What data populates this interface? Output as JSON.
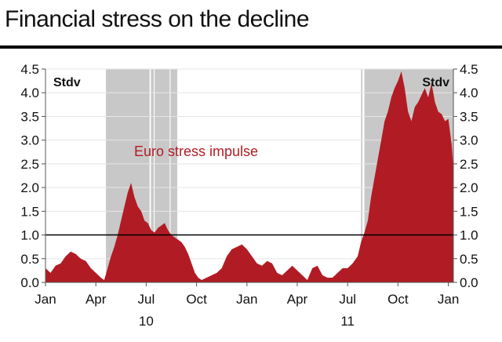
{
  "title": "Financial stress on the decline",
  "chart_data": {
    "type": "area",
    "title": "Financial stress on the decline",
    "ylabel_left": "Stdv",
    "ylabel_right": "Stdv",
    "ylim": [
      0,
      4.5
    ],
    "y_ticks": [
      "0.0",
      "0.5",
      "1.0",
      "1.5",
      "2.0",
      "2.5",
      "3.0",
      "3.5",
      "4.0",
      "4.5"
    ],
    "x_ticks": [
      "Jan",
      "Apr",
      "Jul",
      "Oct",
      "Jan",
      "Apr",
      "Jul",
      "Oct",
      "Jan"
    ],
    "x_tick_months": [
      0,
      3,
      6,
      9,
      12,
      15,
      18,
      21,
      24
    ],
    "year_labels": [
      {
        "label": "10",
        "month": 6
      },
      {
        "label": "11",
        "month": 18
      }
    ],
    "reference_line": 1.0,
    "annotation": "Euro stress impulse",
    "colors": {
      "area": "#b11c24",
      "shade": "#c8c8c8",
      "annotation": "#b11c24",
      "ref_line": "#000000"
    },
    "shaded_periods": [
      [
        3.6,
        6.2
      ],
      [
        6.28,
        6.45
      ],
      [
        6.5,
        7.4
      ],
      [
        7.45,
        7.85
      ],
      [
        18.8,
        18.88
      ],
      [
        19.0,
        24.3
      ]
    ],
    "series": [
      {
        "x": [
          0,
          0.3,
          0.6,
          0.9,
          1.2,
          1.5,
          1.8,
          2.1,
          2.4,
          2.7,
          3.0,
          3.3,
          3.5,
          3.7,
          3.9,
          4.1,
          4.3,
          4.5,
          4.7,
          4.9,
          5.1,
          5.3,
          5.5,
          5.7,
          5.9,
          6.1,
          6.3,
          6.5,
          6.7,
          6.9,
          7.1,
          7.3,
          7.5,
          7.7,
          7.9,
          8.1,
          8.3,
          8.5,
          8.7,
          8.9,
          9.1,
          9.3,
          9.6,
          9.9,
          10.2,
          10.5,
          10.8,
          11.1,
          11.4,
          11.7,
          12.0,
          12.3,
          12.6,
          12.9,
          13.2,
          13.5,
          13.8,
          14.1,
          14.4,
          14.7,
          15.0,
          15.3,
          15.6,
          15.9,
          16.2,
          16.5,
          16.8,
          17.1,
          17.4,
          17.7,
          18.0,
          18.3,
          18.6,
          18.8,
          19.0,
          19.2,
          19.4,
          19.6,
          19.8,
          20.0,
          20.2,
          20.4,
          20.6,
          20.8,
          21.0,
          21.2,
          21.4,
          21.6,
          21.8,
          22.0,
          22.2,
          22.4,
          22.6,
          22.8,
          23.0,
          23.2,
          23.4,
          23.6,
          23.8,
          24.0,
          24.2,
          24.3
        ],
        "values": [
          0.3,
          0.2,
          0.35,
          0.4,
          0.55,
          0.65,
          0.6,
          0.5,
          0.45,
          0.3,
          0.2,
          0.1,
          0.05,
          0.3,
          0.55,
          0.75,
          1.0,
          1.3,
          1.6,
          1.9,
          2.1,
          1.8,
          1.6,
          1.5,
          1.3,
          1.25,
          1.1,
          1.05,
          1.15,
          1.2,
          1.25,
          1.1,
          1.0,
          0.95,
          0.9,
          0.85,
          0.75,
          0.6,
          0.4,
          0.2,
          0.1,
          0.05,
          0.1,
          0.15,
          0.2,
          0.3,
          0.55,
          0.7,
          0.75,
          0.8,
          0.7,
          0.55,
          0.4,
          0.35,
          0.45,
          0.4,
          0.2,
          0.15,
          0.25,
          0.35,
          0.25,
          0.15,
          0.05,
          0.3,
          0.35,
          0.15,
          0.1,
          0.1,
          0.2,
          0.3,
          0.3,
          0.4,
          0.55,
          0.85,
          1.05,
          1.3,
          1.8,
          2.2,
          2.6,
          3.0,
          3.4,
          3.6,
          3.9,
          4.1,
          4.25,
          4.45,
          4.1,
          3.6,
          3.4,
          3.7,
          3.8,
          3.95,
          4.1,
          3.9,
          4.2,
          3.8,
          3.6,
          3.55,
          3.4,
          3.45,
          2.9,
          2.4
        ]
      }
    ]
  }
}
